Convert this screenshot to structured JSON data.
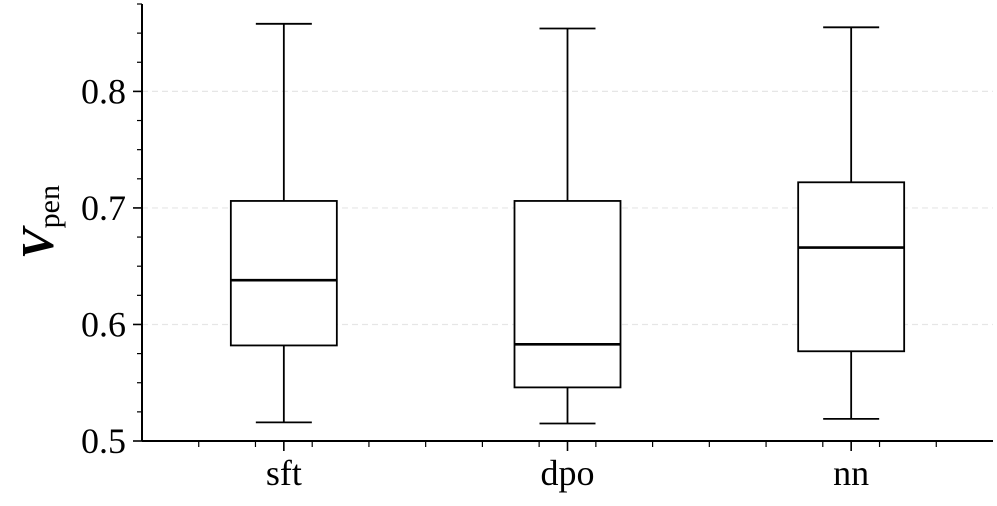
{
  "chart_data": {
    "type": "box",
    "title": "",
    "xlabel": "",
    "ylabel": "V",
    "ylabel_subscript": "pen",
    "categories": [
      "sft",
      "dpo",
      "nn"
    ],
    "boxes": [
      {
        "category": "sft",
        "whisker_low": 0.516,
        "q1": 0.582,
        "median": 0.638,
        "q3": 0.706,
        "whisker_high": 0.858
      },
      {
        "category": "dpo",
        "whisker_low": 0.515,
        "q1": 0.546,
        "median": 0.583,
        "q3": 0.706,
        "whisker_high": 0.854
      },
      {
        "category": "nn",
        "whisker_low": 0.519,
        "q1": 0.577,
        "median": 0.666,
        "q3": 0.722,
        "whisker_high": 0.855
      }
    ],
    "ylim": [
      0.5,
      0.875
    ],
    "yticks": [
      0.5,
      0.6,
      0.7,
      0.8
    ],
    "ytick_labels": [
      "0.5",
      "0.6",
      "0.7",
      "0.8"
    ],
    "grid": "horizontal-dashed",
    "legend": "none",
    "colors": {
      "box_edge": "#000000",
      "box_fill": "#ffffff",
      "grid": "#e6e6e6",
      "axis": "#000000"
    }
  }
}
